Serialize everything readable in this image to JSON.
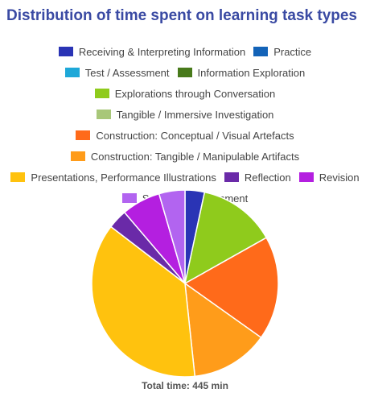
{
  "chart_data": {
    "type": "pie",
    "title": "Distribution of time spent on learning task types",
    "legend_placement": "top",
    "total_label": "Total time: 445 min",
    "slices": [
      {
        "name": "Receiving & Interpreting Information",
        "value": 15,
        "color": "#2a34b5"
      },
      {
        "name": "Practice",
        "value": 0,
        "color": "#1363b8"
      },
      {
        "name": "Test / Assessment",
        "value": 0,
        "color": "#1ea8d8"
      },
      {
        "name": "Information Exploration",
        "value": 0,
        "color": "#487a1b"
      },
      {
        "name": "Explorations through Conversation",
        "value": 60,
        "color": "#8fcb1c"
      },
      {
        "name": "Tangible / Immersive Investigation",
        "value": 0,
        "color": "#a8c779"
      },
      {
        "name": "Construction: Conceptual / Visual Artefacts",
        "value": 80,
        "color": "#ff6a1a"
      },
      {
        "name": "Construction: Tangible / Manipulable Artifacts",
        "value": 60,
        "color": "#ff9c1a"
      },
      {
        "name": "Presentations, Performance Illustrations",
        "value": 165,
        "color": "#ffc20e"
      },
      {
        "name": "Reflection",
        "value": 15,
        "color": "#6a2aa8"
      },
      {
        "name": "Revision",
        "value": 30,
        "color": "#b41fe0"
      },
      {
        "name": "Self-/Peer-assessment",
        "value": 20,
        "color": "#b264f0"
      }
    ]
  }
}
